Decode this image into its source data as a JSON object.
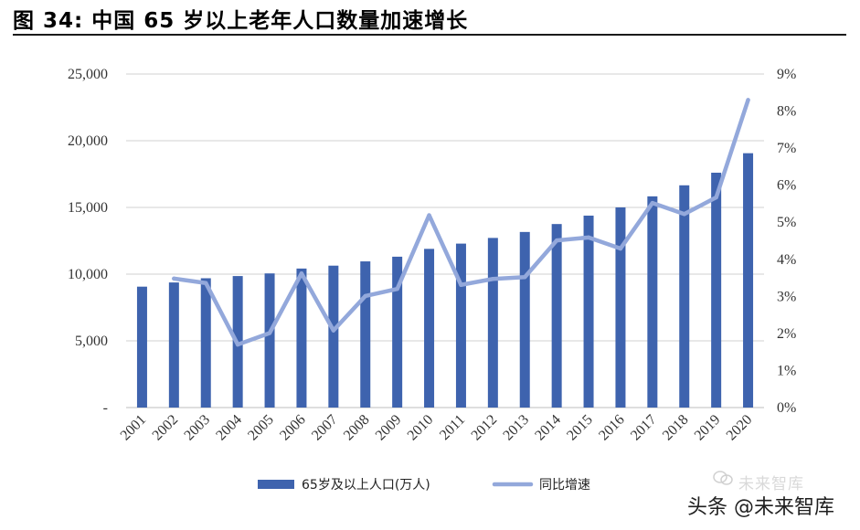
{
  "title": "图  34:  中国 65 岁以上老年人口数量加速增长",
  "watermark": {
    "line1": "未来智库",
    "line2": "头条 @未来智库"
  },
  "colors": {
    "bar": "#3E63AE",
    "line": "#93A8DB",
    "grid": "#d0d0d0"
  },
  "chart_data": {
    "type": "bar+line",
    "categories": [
      "2001",
      "2002",
      "2003",
      "2004",
      "2005",
      "2006",
      "2007",
      "2008",
      "2009",
      "2010",
      "2011",
      "2012",
      "2013",
      "2014",
      "2015",
      "2016",
      "2017",
      "2018",
      "2019",
      "2020"
    ],
    "series": [
      {
        "name": "65岁及以上人口(万人)",
        "type": "bar",
        "axis": "left",
        "values": [
          9062,
          9377,
          9692,
          9857,
          10055,
          10419,
          10636,
          10956,
          11307,
          11894,
          12288,
          12714,
          13161,
          13755,
          14386,
          15003,
          15831,
          16658,
          17603,
          19064
        ]
      },
      {
        "name": "同比增速",
        "type": "line",
        "axis": "right",
        "values": [
          null,
          3.48,
          3.36,
          1.7,
          2.01,
          3.62,
          2.08,
          3.01,
          3.2,
          5.19,
          3.31,
          3.47,
          3.52,
          4.51,
          4.59,
          4.29,
          5.52,
          5.22,
          5.67,
          8.3
        ]
      }
    ],
    "y_left": {
      "min": 0,
      "max": 25000,
      "ticks": [
        "-",
        "5,000",
        "10,000",
        "15,000",
        "20,000",
        "25,000"
      ]
    },
    "y_right": {
      "min": 0,
      "max": 9,
      "ticks": [
        "0%",
        "1%",
        "2%",
        "3%",
        "4%",
        "5%",
        "6%",
        "7%",
        "8%",
        "9%"
      ]
    },
    "grid": true,
    "legend": {
      "position": "bottom-center",
      "labels": [
        "65岁及以上人口(万人)",
        "同比增速"
      ]
    }
  }
}
